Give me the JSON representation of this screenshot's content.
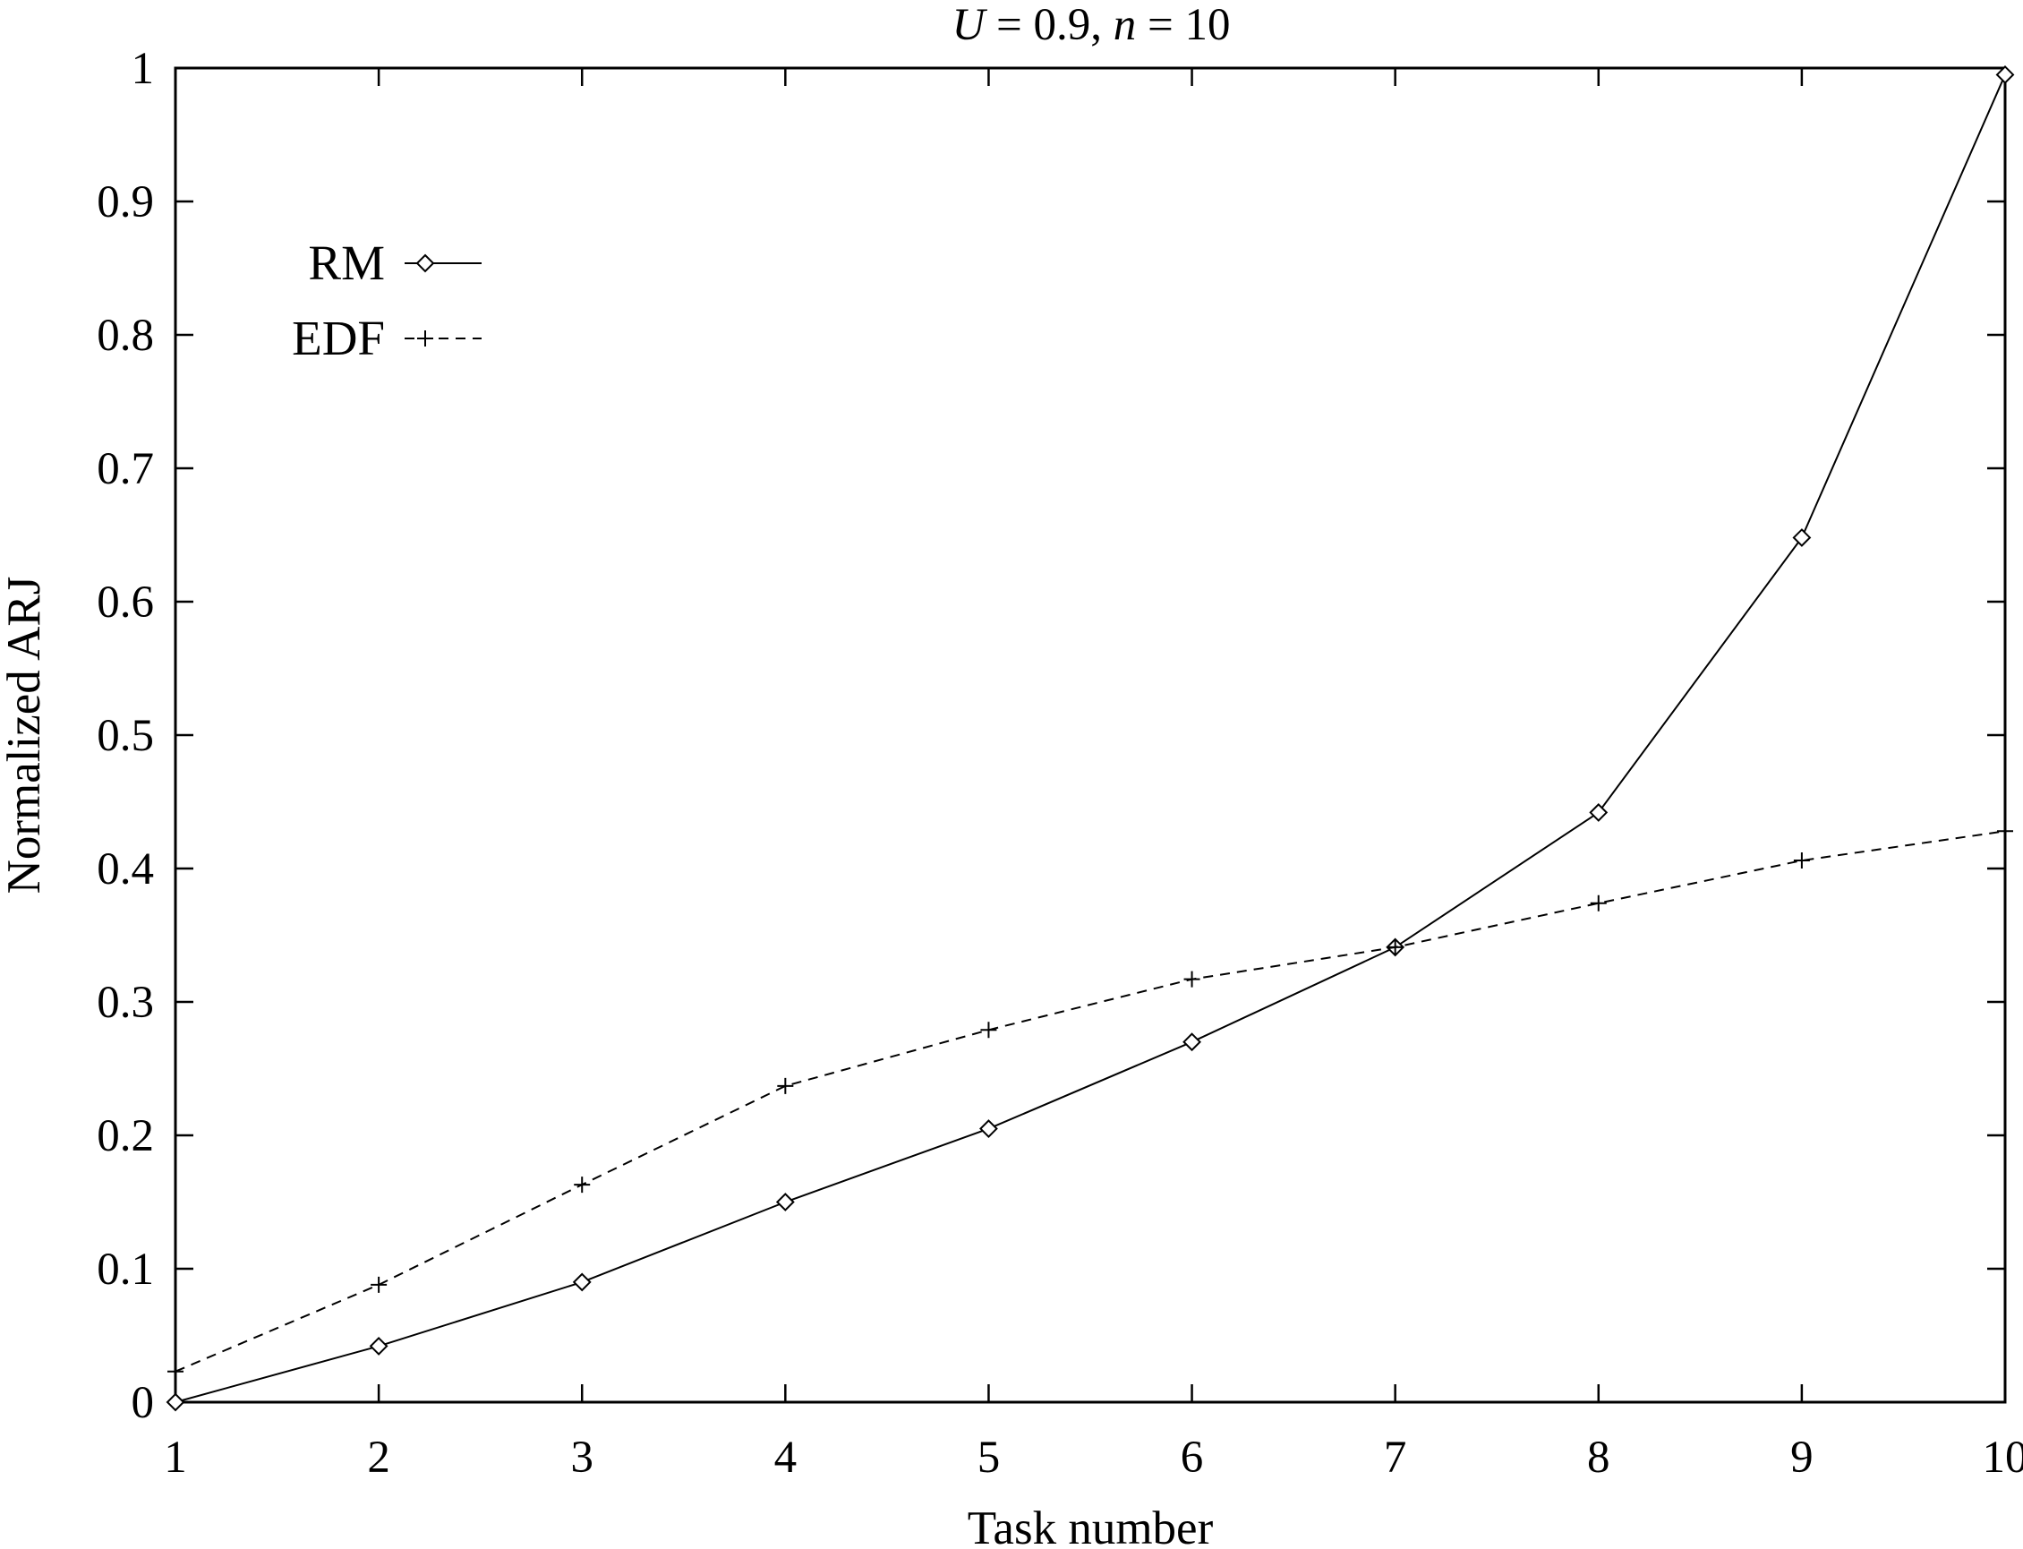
{
  "chart_data": {
    "type": "line",
    "title": "U = 0.9, n = 10",
    "title_parts": {
      "var1": "U",
      "eq1": " = 0.9, ",
      "var2": "n",
      "eq2": " = 10"
    },
    "xlabel": "Task number",
    "ylabel": "Normalized ARJ",
    "xlim": [
      1,
      10
    ],
    "ylim": [
      0,
      1
    ],
    "x_ticks": [
      "1",
      "2",
      "3",
      "4",
      "5",
      "6",
      "7",
      "8",
      "9",
      "10"
    ],
    "y_ticks": [
      "0",
      "0.1",
      "0.2",
      "0.3",
      "0.4",
      "0.5",
      "0.6",
      "0.7",
      "0.8",
      "0.9",
      "1"
    ],
    "grid": false,
    "legend_position": "top-left",
    "x": [
      1,
      2,
      3,
      4,
      5,
      6,
      7,
      8,
      9,
      10
    ],
    "series": [
      {
        "name": "RM",
        "marker": "diamond",
        "line_style": "solid",
        "values": [
          0.0,
          0.042,
          0.09,
          0.15,
          0.205,
          0.27,
          0.341,
          0.442,
          0.648,
          0.995
        ]
      },
      {
        "name": "EDF",
        "marker": "plus",
        "line_style": "dashed",
        "values": [
          0.023,
          0.088,
          0.163,
          0.237,
          0.279,
          0.317,
          0.341,
          0.374,
          0.406,
          0.428
        ]
      }
    ]
  }
}
